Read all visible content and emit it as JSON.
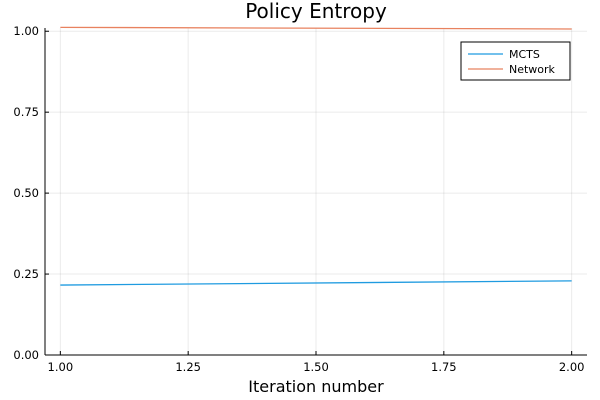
{
  "chart_data": {
    "type": "line",
    "title": "Policy Entropy",
    "xlabel": "Iteration number",
    "ylabel": "",
    "xlim": [
      0.97,
      2.03
    ],
    "ylim": [
      0.0,
      1.01
    ],
    "xticks": [
      1.0,
      1.25,
      1.5,
      1.75,
      2.0
    ],
    "xtick_labels": [
      "1.00",
      "1.25",
      "1.50",
      "1.75",
      "2.00"
    ],
    "yticks": [
      0.0,
      0.25,
      0.5,
      0.75,
      1.0
    ],
    "ytick_labels": [
      "0.00",
      "0.25",
      "0.50",
      "0.75",
      "1.00"
    ],
    "grid": true,
    "legend_position": "top-right",
    "series": [
      {
        "name": "MCTS",
        "color": "#1f9be0",
        "x": [
          1,
          2
        ],
        "y": [
          0.216,
          0.229
        ]
      },
      {
        "name": "Network",
        "color": "#e8825f",
        "x": [
          1,
          2
        ],
        "y": [
          1.012,
          1.007
        ]
      }
    ]
  }
}
